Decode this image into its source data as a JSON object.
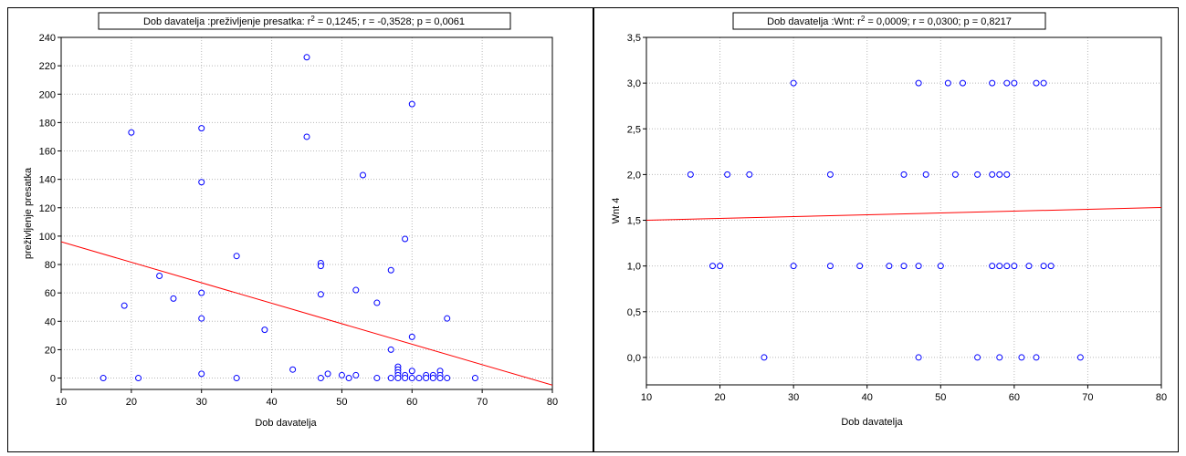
{
  "charts": [
    {
      "title_prefix": "Dob davatelja :preživljenje presatka:  r",
      "title_sup": "2",
      "title_suffix": " = 0,1245;  r = -0,3528; p = 0,0061",
      "xlabel": "Dob davatelja",
      "ylabel": "preživljenje presatka",
      "xticks": [
        "10",
        "20",
        "30",
        "40",
        "50",
        "60",
        "70",
        "80"
      ],
      "yticks": [
        "0",
        "20",
        "40",
        "60",
        "80",
        "100",
        "120",
        "140",
        "160",
        "180",
        "200",
        "220",
        "240"
      ]
    },
    {
      "title_prefix": "Dob davatelja :Wnt:  r",
      "title_sup": "2",
      "title_suffix": " = 0,0009;  r = 0,0300; p = 0,8217",
      "xlabel": "Dob davatelja",
      "ylabel": "Wnt  4",
      "xticks": [
        "10",
        "20",
        "30",
        "40",
        "50",
        "60",
        "70",
        "80"
      ],
      "yticks": [
        "0,0",
        "0,5",
        "1,0",
        "1,5",
        "2,0",
        "2,5",
        "3,0",
        "3,5"
      ]
    }
  ],
  "chart_data": [
    {
      "type": "scatter",
      "xlim": [
        10,
        80
      ],
      "ylim": [
        -8,
        240
      ],
      "grid": true,
      "point_color": "#0000ff",
      "line_color": "#ff0000",
      "fit_line": {
        "x": [
          10,
          80
        ],
        "y": [
          96,
          -5
        ]
      },
      "points": [
        [
          16,
          0
        ],
        [
          19,
          51
        ],
        [
          20,
          173
        ],
        [
          21,
          0
        ],
        [
          24,
          72
        ],
        [
          26,
          56
        ],
        [
          30,
          176
        ],
        [
          30,
          138
        ],
        [
          30,
          60
        ],
        [
          30,
          42
        ],
        [
          30,
          3
        ],
        [
          35,
          86
        ],
        [
          35,
          0
        ],
        [
          39,
          34
        ],
        [
          43,
          6
        ],
        [
          45,
          226
        ],
        [
          45,
          170
        ],
        [
          47,
          81
        ],
        [
          47,
          79
        ],
        [
          47,
          59
        ],
        [
          47,
          0
        ],
        [
          48,
          3
        ],
        [
          50,
          2
        ],
        [
          51,
          0
        ],
        [
          52,
          62
        ],
        [
          52,
          2
        ],
        [
          53,
          143
        ],
        [
          55,
          53
        ],
        [
          55,
          0
        ],
        [
          57,
          76
        ],
        [
          57,
          20
        ],
        [
          57,
          0
        ],
        [
          58,
          8
        ],
        [
          58,
          6
        ],
        [
          58,
          4
        ],
        [
          58,
          2
        ],
        [
          58,
          0
        ],
        [
          59,
          98
        ],
        [
          59,
          2
        ],
        [
          59,
          0
        ],
        [
          60,
          193
        ],
        [
          60,
          29
        ],
        [
          60,
          5
        ],
        [
          60,
          0
        ],
        [
          61,
          0
        ],
        [
          62,
          2
        ],
        [
          62,
          0
        ],
        [
          63,
          2
        ],
        [
          63,
          0
        ],
        [
          64,
          5
        ],
        [
          64,
          2
        ],
        [
          64,
          0
        ],
        [
          65,
          42
        ],
        [
          65,
          0
        ],
        [
          69,
          0
        ]
      ]
    },
    {
      "type": "scatter",
      "xlim": [
        10,
        80
      ],
      "ylim": [
        -0.3,
        3.5
      ],
      "grid": true,
      "point_color": "#0000ff",
      "line_color": "#ff0000",
      "fit_line": {
        "x": [
          10,
          80
        ],
        "y": [
          1.5,
          1.64
        ]
      },
      "points": [
        [
          16,
          2
        ],
        [
          21,
          2
        ],
        [
          24,
          2
        ],
        [
          35,
          2
        ],
        [
          45,
          2
        ],
        [
          48,
          2
        ],
        [
          52,
          2
        ],
        [
          55,
          2
        ],
        [
          57,
          2
        ],
        [
          58,
          2
        ],
        [
          59,
          2
        ],
        [
          30,
          3
        ],
        [
          47,
          3
        ],
        [
          51,
          3
        ],
        [
          53,
          3
        ],
        [
          57,
          3
        ],
        [
          59,
          3
        ],
        [
          60,
          3
        ],
        [
          63,
          3
        ],
        [
          64,
          3
        ],
        [
          19,
          1
        ],
        [
          20,
          1
        ],
        [
          30,
          1
        ],
        [
          35,
          1
        ],
        [
          39,
          1
        ],
        [
          43,
          1
        ],
        [
          45,
          1
        ],
        [
          47,
          1
        ],
        [
          50,
          1
        ],
        [
          57,
          1
        ],
        [
          58,
          1
        ],
        [
          59,
          1
        ],
        [
          60,
          1
        ],
        [
          62,
          1
        ],
        [
          64,
          1
        ],
        [
          65,
          1
        ],
        [
          26,
          0
        ],
        [
          47,
          0
        ],
        [
          55,
          0
        ],
        [
          58,
          0
        ],
        [
          61,
          0
        ],
        [
          63,
          0
        ],
        [
          69,
          0
        ]
      ]
    }
  ]
}
